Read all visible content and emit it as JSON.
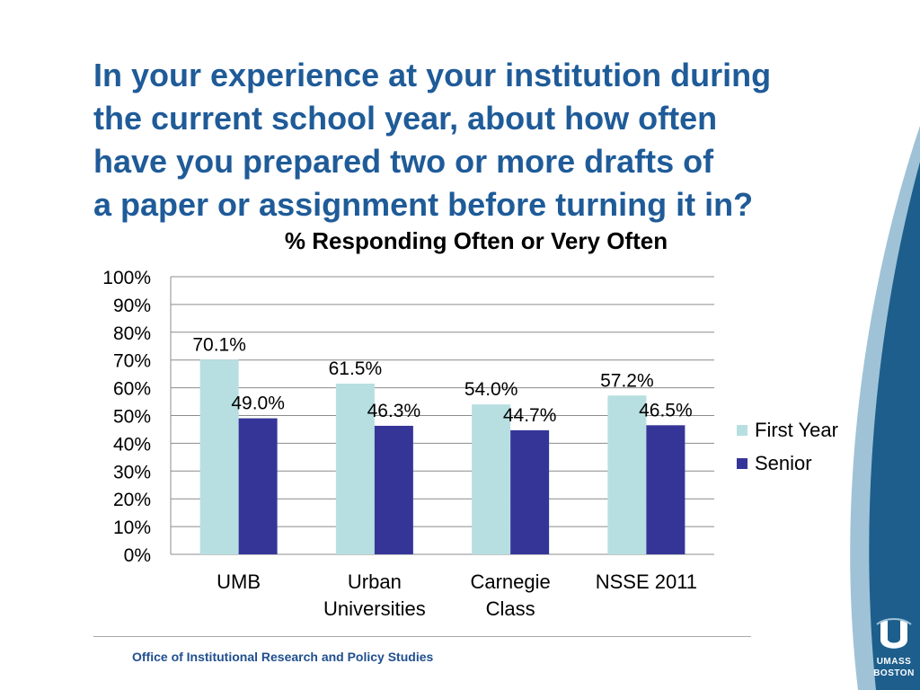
{
  "slide": {
    "question_lines": [
      "In your experience at your institution during",
      "the current school year, about how often",
      "have you prepared two or more drafts of",
      "a paper or assignment before turning it in?"
    ],
    "footer": "Office of Institutional Research and Policy Studies",
    "logo": {
      "line1": "UMASS",
      "line2": "BOSTON"
    }
  },
  "colors": {
    "title": "#1f5b98",
    "first_year": "#b7dfe1",
    "senior": "#353598",
    "gridline": "#8c8c8c",
    "corner_dark": "#1d5e8c",
    "corner_light": "#9fc2d6"
  },
  "chart_data": {
    "type": "bar",
    "title": "% Responding Often or Very Often",
    "categories": [
      [
        "UMB"
      ],
      [
        "Urban",
        "Universities"
      ],
      [
        "Carnegie",
        "Class"
      ],
      [
        "NSSE 2011"
      ]
    ],
    "series": [
      {
        "name": "First Year",
        "values": [
          70.1,
          61.5,
          54.0,
          57.2
        ],
        "labels": [
          "70.1%",
          "61.5%",
          "54.0%",
          "57.2%"
        ]
      },
      {
        "name": "Senior",
        "values": [
          49.0,
          46.3,
          44.7,
          46.5
        ],
        "labels": [
          "49.0%",
          "46.3%",
          "44.7%",
          "46.5%"
        ]
      }
    ],
    "ylim": [
      0,
      100
    ],
    "yticks": [
      "0%",
      "10%",
      "20%",
      "30%",
      "40%",
      "50%",
      "60%",
      "70%",
      "80%",
      "90%",
      "100%"
    ],
    "grid": true,
    "legend_position": "right"
  }
}
